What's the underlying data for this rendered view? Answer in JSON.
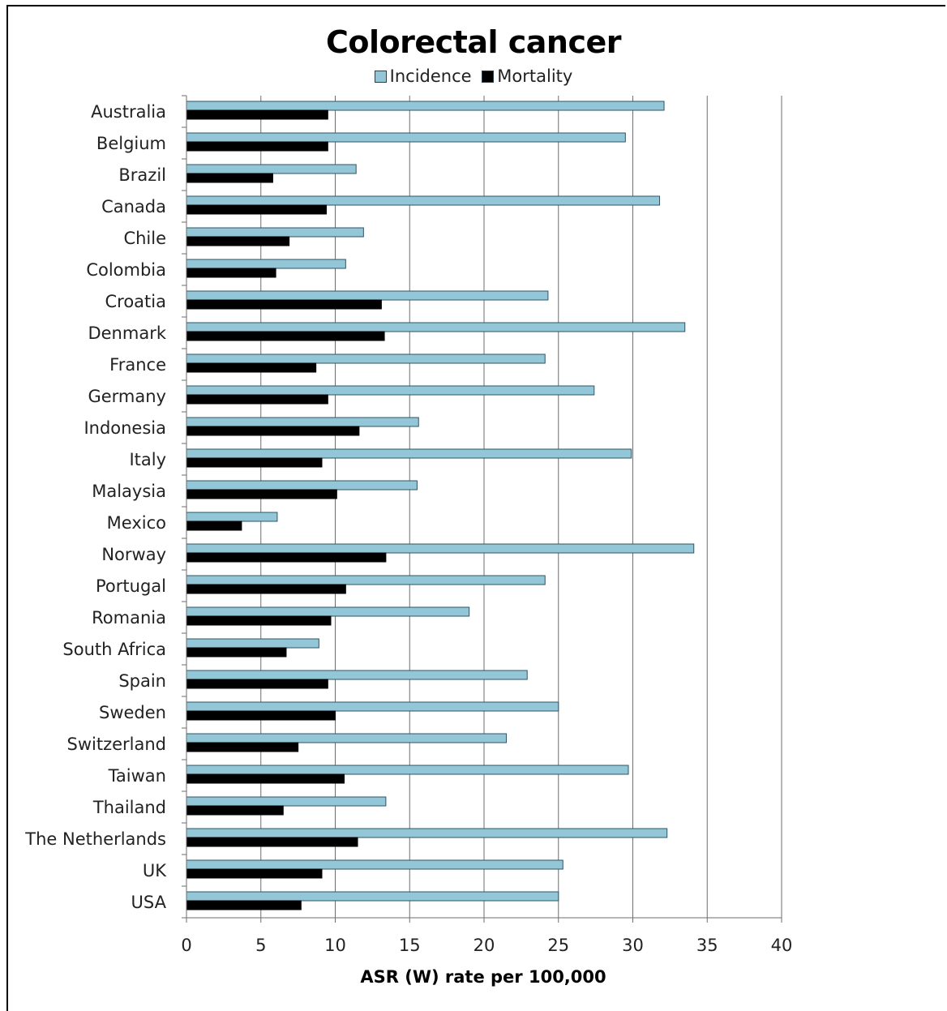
{
  "chart_data": {
    "type": "bar",
    "orientation": "horizontal",
    "title": "Colorectal cancer",
    "xlabel": "ASR (W) rate per 100,000",
    "ylabel": "",
    "xlim": [
      0,
      40
    ],
    "xticks": [
      "0",
      "5",
      "10",
      "15",
      "20",
      "25",
      "30",
      "35",
      "40"
    ],
    "grid": "vertical",
    "legend_position": "top",
    "categories": [
      "Australia",
      "Belgium",
      "Brazil",
      "Canada",
      "Chile",
      "Colombia",
      "Croatia",
      "Denmark",
      "France",
      "Germany",
      "Indonesia",
      "Italy",
      "Malaysia",
      "Mexico",
      "Norway",
      "Portugal",
      "Romania",
      "South Africa",
      "Spain",
      "Sweden",
      "Switzerland",
      "Taiwan",
      "Thailand",
      "The Netherlands",
      "UK",
      "USA"
    ],
    "series": [
      {
        "name": "Incidence",
        "color": "#93c6d6",
        "values": [
          32.1,
          29.5,
          11.4,
          31.8,
          11.9,
          10.7,
          24.3,
          33.5,
          24.1,
          27.4,
          15.6,
          29.9,
          15.5,
          6.1,
          34.1,
          24.1,
          19.0,
          8.9,
          22.9,
          25.0,
          21.5,
          29.7,
          13.4,
          32.3,
          25.3,
          25.0
        ]
      },
      {
        "name": "Mortality",
        "color": "#000000",
        "values": [
          9.5,
          9.5,
          5.8,
          9.4,
          6.9,
          6.0,
          13.1,
          13.3,
          8.7,
          9.5,
          11.6,
          9.1,
          10.1,
          3.7,
          13.4,
          10.7,
          9.7,
          6.7,
          9.5,
          10.0,
          7.5,
          10.6,
          6.5,
          11.5,
          9.1,
          7.7
        ]
      }
    ]
  }
}
